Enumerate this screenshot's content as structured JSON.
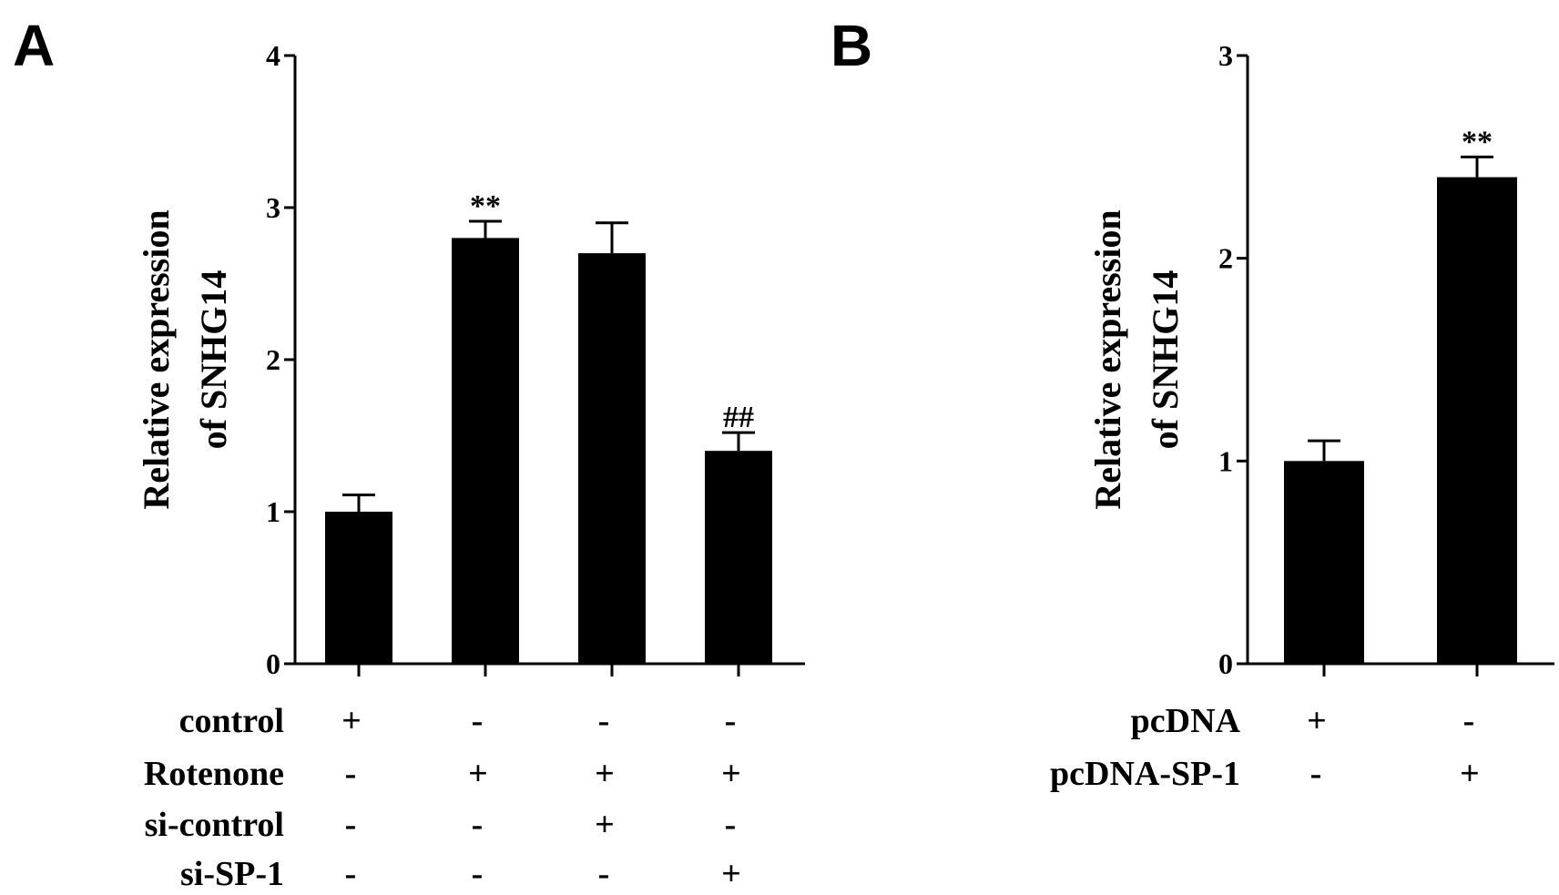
{
  "chart_data": [
    {
      "panel_label": "A",
      "type": "bar",
      "ylabel_lines": [
        "Relative expression",
        "of  SNHG14"
      ],
      "ylim": [
        0,
        4
      ],
      "yticks": [
        0,
        1,
        2,
        3,
        4
      ],
      "ytick_labels": [
        "0",
        "1",
        "2",
        "3",
        "4"
      ],
      "bar_color": "#000000",
      "values": [
        1.0,
        2.8,
        2.7,
        1.4
      ],
      "errors": [
        0.11,
        0.11,
        0.2,
        0.12
      ],
      "annotations": [
        "",
        "**",
        "",
        "##"
      ],
      "condition_rows": [
        {
          "name": "control",
          "signs": [
            "+",
            "-",
            "-",
            "-"
          ]
        },
        {
          "name": "Rotenone",
          "signs": [
            "-",
            "+",
            "+",
            "+"
          ]
        },
        {
          "name": "si-control",
          "signs": [
            "-",
            "-",
            "+",
            "-"
          ]
        },
        {
          "name": "si-SP-1",
          "signs": [
            "-",
            "-",
            "-",
            "+"
          ]
        }
      ]
    },
    {
      "panel_label": "B",
      "type": "bar",
      "ylabel_lines": [
        "Relative expression",
        "of  SNHG14"
      ],
      "ylim": [
        0,
        3
      ],
      "yticks": [
        0,
        1,
        2,
        3
      ],
      "ytick_labels": [
        "0",
        "1",
        "2",
        "3"
      ],
      "bar_color": "#000000",
      "values": [
        1.0,
        2.4
      ],
      "errors": [
        0.1,
        0.1
      ],
      "annotations": [
        "",
        "**"
      ],
      "condition_rows": [
        {
          "name": "pcDNA",
          "signs": [
            "+",
            "-"
          ]
        },
        {
          "name": "pcDNA-SP-1",
          "signs": [
            "-",
            "+"
          ]
        }
      ]
    }
  ]
}
